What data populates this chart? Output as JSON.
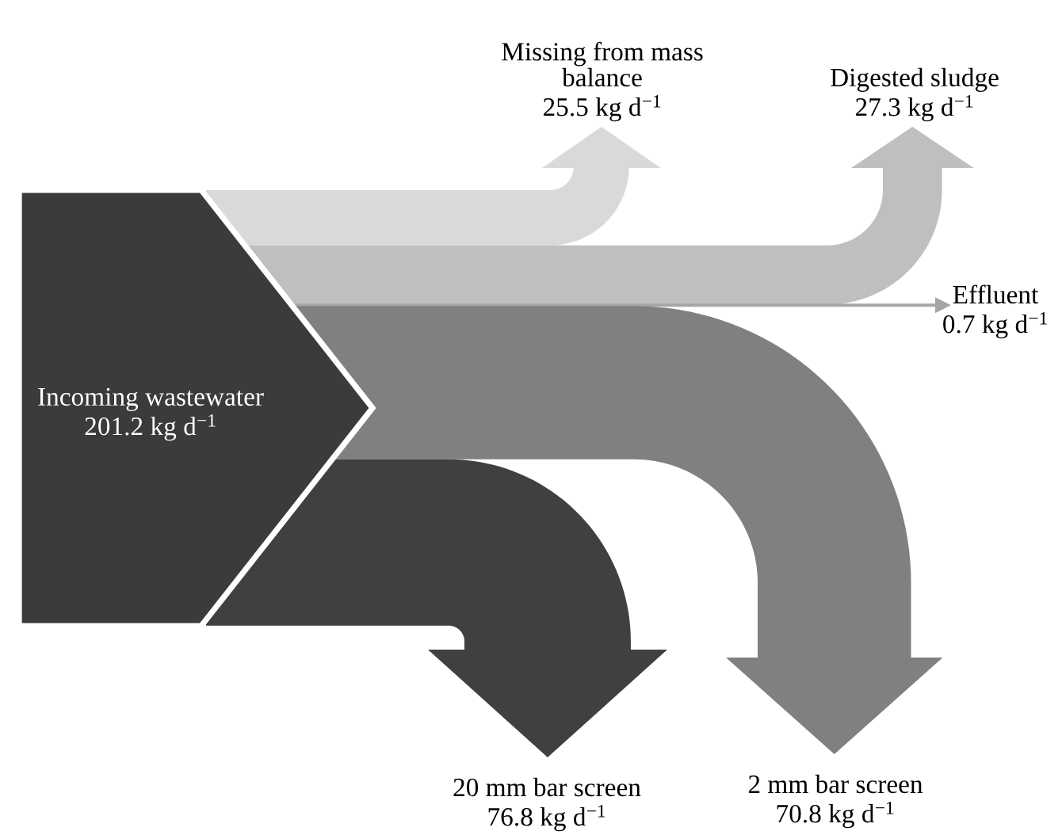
{
  "chart_data": {
    "type": "other",
    "categories": [
      "Incoming wastewater",
      "Missing from mass\nbalance",
      "Digested sludge",
      "Effluent",
      "2 mm bar screen",
      "20 mm bar screen"
    ],
    "values": [
      201.2,
      25.5,
      27.3,
      0.7,
      70.8,
      76.8
    ],
    "value_labels": [
      "201.2 kg d$^{−1}$",
      "25.5 kg d$^{−1}$",
      "27.3 kg d$^{−1}$",
      "0.7 kg d$^{−1}$",
      "70.8 kg d$^{−1}$",
      "76.8 kg d$^{−1}$"
    ],
    "colors": [
      "#3b3b3b",
      "#d9d9d9",
      "#bfbfbf",
      "#a6a6a6",
      "#808080",
      "#404040"
    ]
  }
}
